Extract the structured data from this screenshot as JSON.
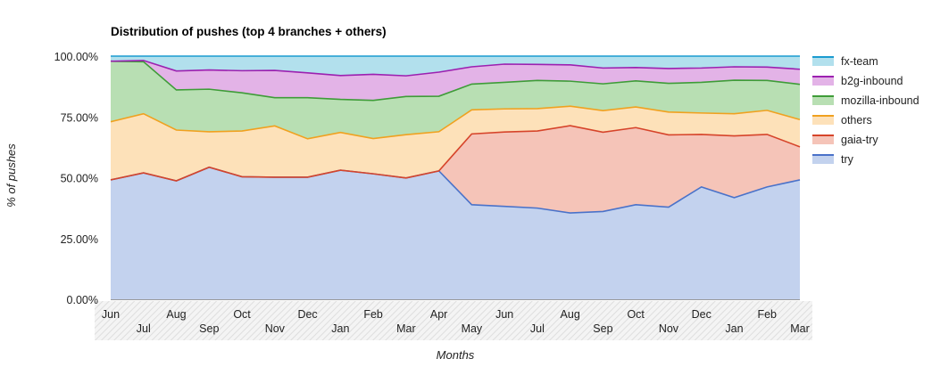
{
  "chart_data": {
    "type": "area",
    "stacked": true,
    "title": "Distribution of pushes (top 4 branches + others)",
    "xlabel": "Months",
    "ylabel": "% of pushes",
    "ylim": [
      0,
      100
    ],
    "yticks": [
      "0.00%",
      "25.00%",
      "50.00%",
      "75.00%",
      "100.00%"
    ],
    "grid": true,
    "legend_position": "right",
    "categories": [
      "Jun",
      "Jul",
      "Aug",
      "Sep",
      "Oct",
      "Nov",
      "Dec",
      "Jan",
      "Feb",
      "Mar",
      "Apr",
      "May",
      "Jun",
      "Jul",
      "Aug",
      "Sep",
      "Oct",
      "Nov",
      "Dec",
      "Jan",
      "Feb",
      "Mar"
    ],
    "series": [
      {
        "name": "try",
        "color": "#4a72c9",
        "fill": "#c3d2ee",
        "values": [
          49.1,
          52.0,
          48.7,
          54.3,
          50.4,
          50.2,
          50.2,
          53.1,
          51.6,
          49.9,
          52.8,
          38.9,
          38.2,
          37.5,
          35.5,
          36.1,
          38.9,
          37.9,
          46.2,
          41.8,
          46.2,
          49.1
        ]
      },
      {
        "name": "gaia-try",
        "color": "#d6442a",
        "fill": "#f5c4b8",
        "values": [
          0,
          0,
          0,
          0,
          0,
          0,
          0,
          0,
          0,
          0,
          0,
          29.1,
          30.6,
          31.7,
          35.9,
          32.6,
          31.7,
          29.7,
          21.6,
          25.4,
          21.6,
          13.6
        ]
      },
      {
        "name": "others",
        "color": "#f0a11f",
        "fill": "#fde1b9",
        "values": [
          23.9,
          24.3,
          20.9,
          14.6,
          18.8,
          21.1,
          15.8,
          15.5,
          14.5,
          17.8,
          16.1,
          9.9,
          9.5,
          9.2,
          8.0,
          8.9,
          8.5,
          9.4,
          8.8,
          9.1,
          9.9,
          11.2
        ]
      },
      {
        "name": "mozilla-inbound",
        "color": "#3e9c38",
        "fill": "#b8dfb3",
        "values": [
          24.9,
          21.4,
          16.5,
          17.5,
          15.7,
          11.6,
          16.9,
          13.6,
          15.7,
          15.7,
          14.6,
          10.6,
          10.9,
          11.6,
          10.3,
          11.0,
          10.7,
          11.8,
          12.6,
          13.8,
          12.3,
          14.5
        ]
      },
      {
        "name": "b2g-inbound",
        "color": "#9c20b0",
        "fill": "#e3b3e7",
        "values": [
          0,
          0.5,
          7.8,
          7.9,
          9.1,
          11.2,
          10.2,
          9.8,
          10.7,
          8.5,
          9.9,
          7.1,
          7.5,
          6.6,
          6.7,
          6.5,
          5.5,
          6.1,
          5.9,
          5.5,
          5.5,
          6.2
        ]
      },
      {
        "name": "fx-team",
        "color": "#1a9bd0",
        "fill": "#b2e0ed",
        "values": [
          2.1,
          1.8,
          6.1,
          5.7,
          6.0,
          5.9,
          6.9,
          8.0,
          7.5,
          8.1,
          6.6,
          4.4,
          3.3,
          3.4,
          3.6,
          4.9,
          4.7,
          5.1,
          4.9,
          4.4,
          4.5,
          5.4
        ]
      }
    ],
    "legend_order": [
      "fx-team",
      "b2g-inbound",
      "mozilla-inbound",
      "others",
      "gaia-try",
      "try"
    ]
  }
}
